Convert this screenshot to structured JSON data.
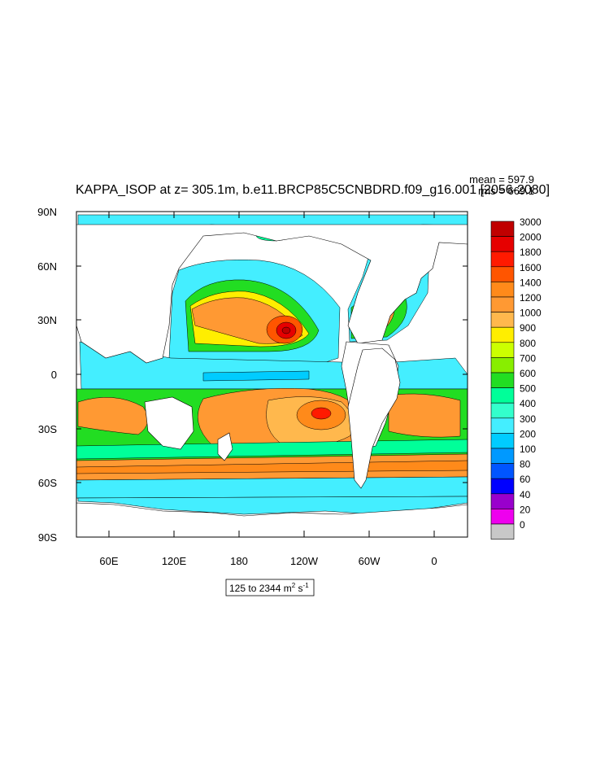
{
  "title": "KAPPA_ISOP at z= 305.1m, b.e11.BRCP85C5CNBDRD.f09_g16.001 [2056-2080]",
  "stats": {
    "mean": "mean = 597.9",
    "rms": "rms = 669.1"
  },
  "range_label": {
    "text": "125 to 2344 m",
    "sup1": "2",
    "mid": " s",
    "sup2": "-1"
  },
  "axes": {
    "lat_ticks": [
      "90N",
      "60N",
      "30N",
      "0",
      "30S",
      "60S",
      "90S"
    ],
    "lon_ticks": [
      "60E",
      "120E",
      "180",
      "120W",
      "60W",
      "0"
    ]
  },
  "colorbar": {
    "labels": [
      "3000",
      "2000",
      "1800",
      "1600",
      "1400",
      "1200",
      "1000",
      "900",
      "800",
      "700",
      "600",
      "500",
      "400",
      "300",
      "200",
      "100",
      "80",
      "60",
      "40",
      "20",
      "0"
    ],
    "colors": [
      "#c00000",
      "#e60000",
      "#ff1a00",
      "#ff5500",
      "#ff8a1a",
      "#ff9933",
      "#ffb84d",
      "#ffee00",
      "#ccff00",
      "#88ee00",
      "#22dd22",
      "#00ff99",
      "#33ffcc",
      "#44eeff",
      "#00ccff",
      "#0099ff",
      "#0055ff",
      "#0000ff",
      "#9900cc",
      "#ee00ee",
      "#c8c8c8"
    ]
  }
}
